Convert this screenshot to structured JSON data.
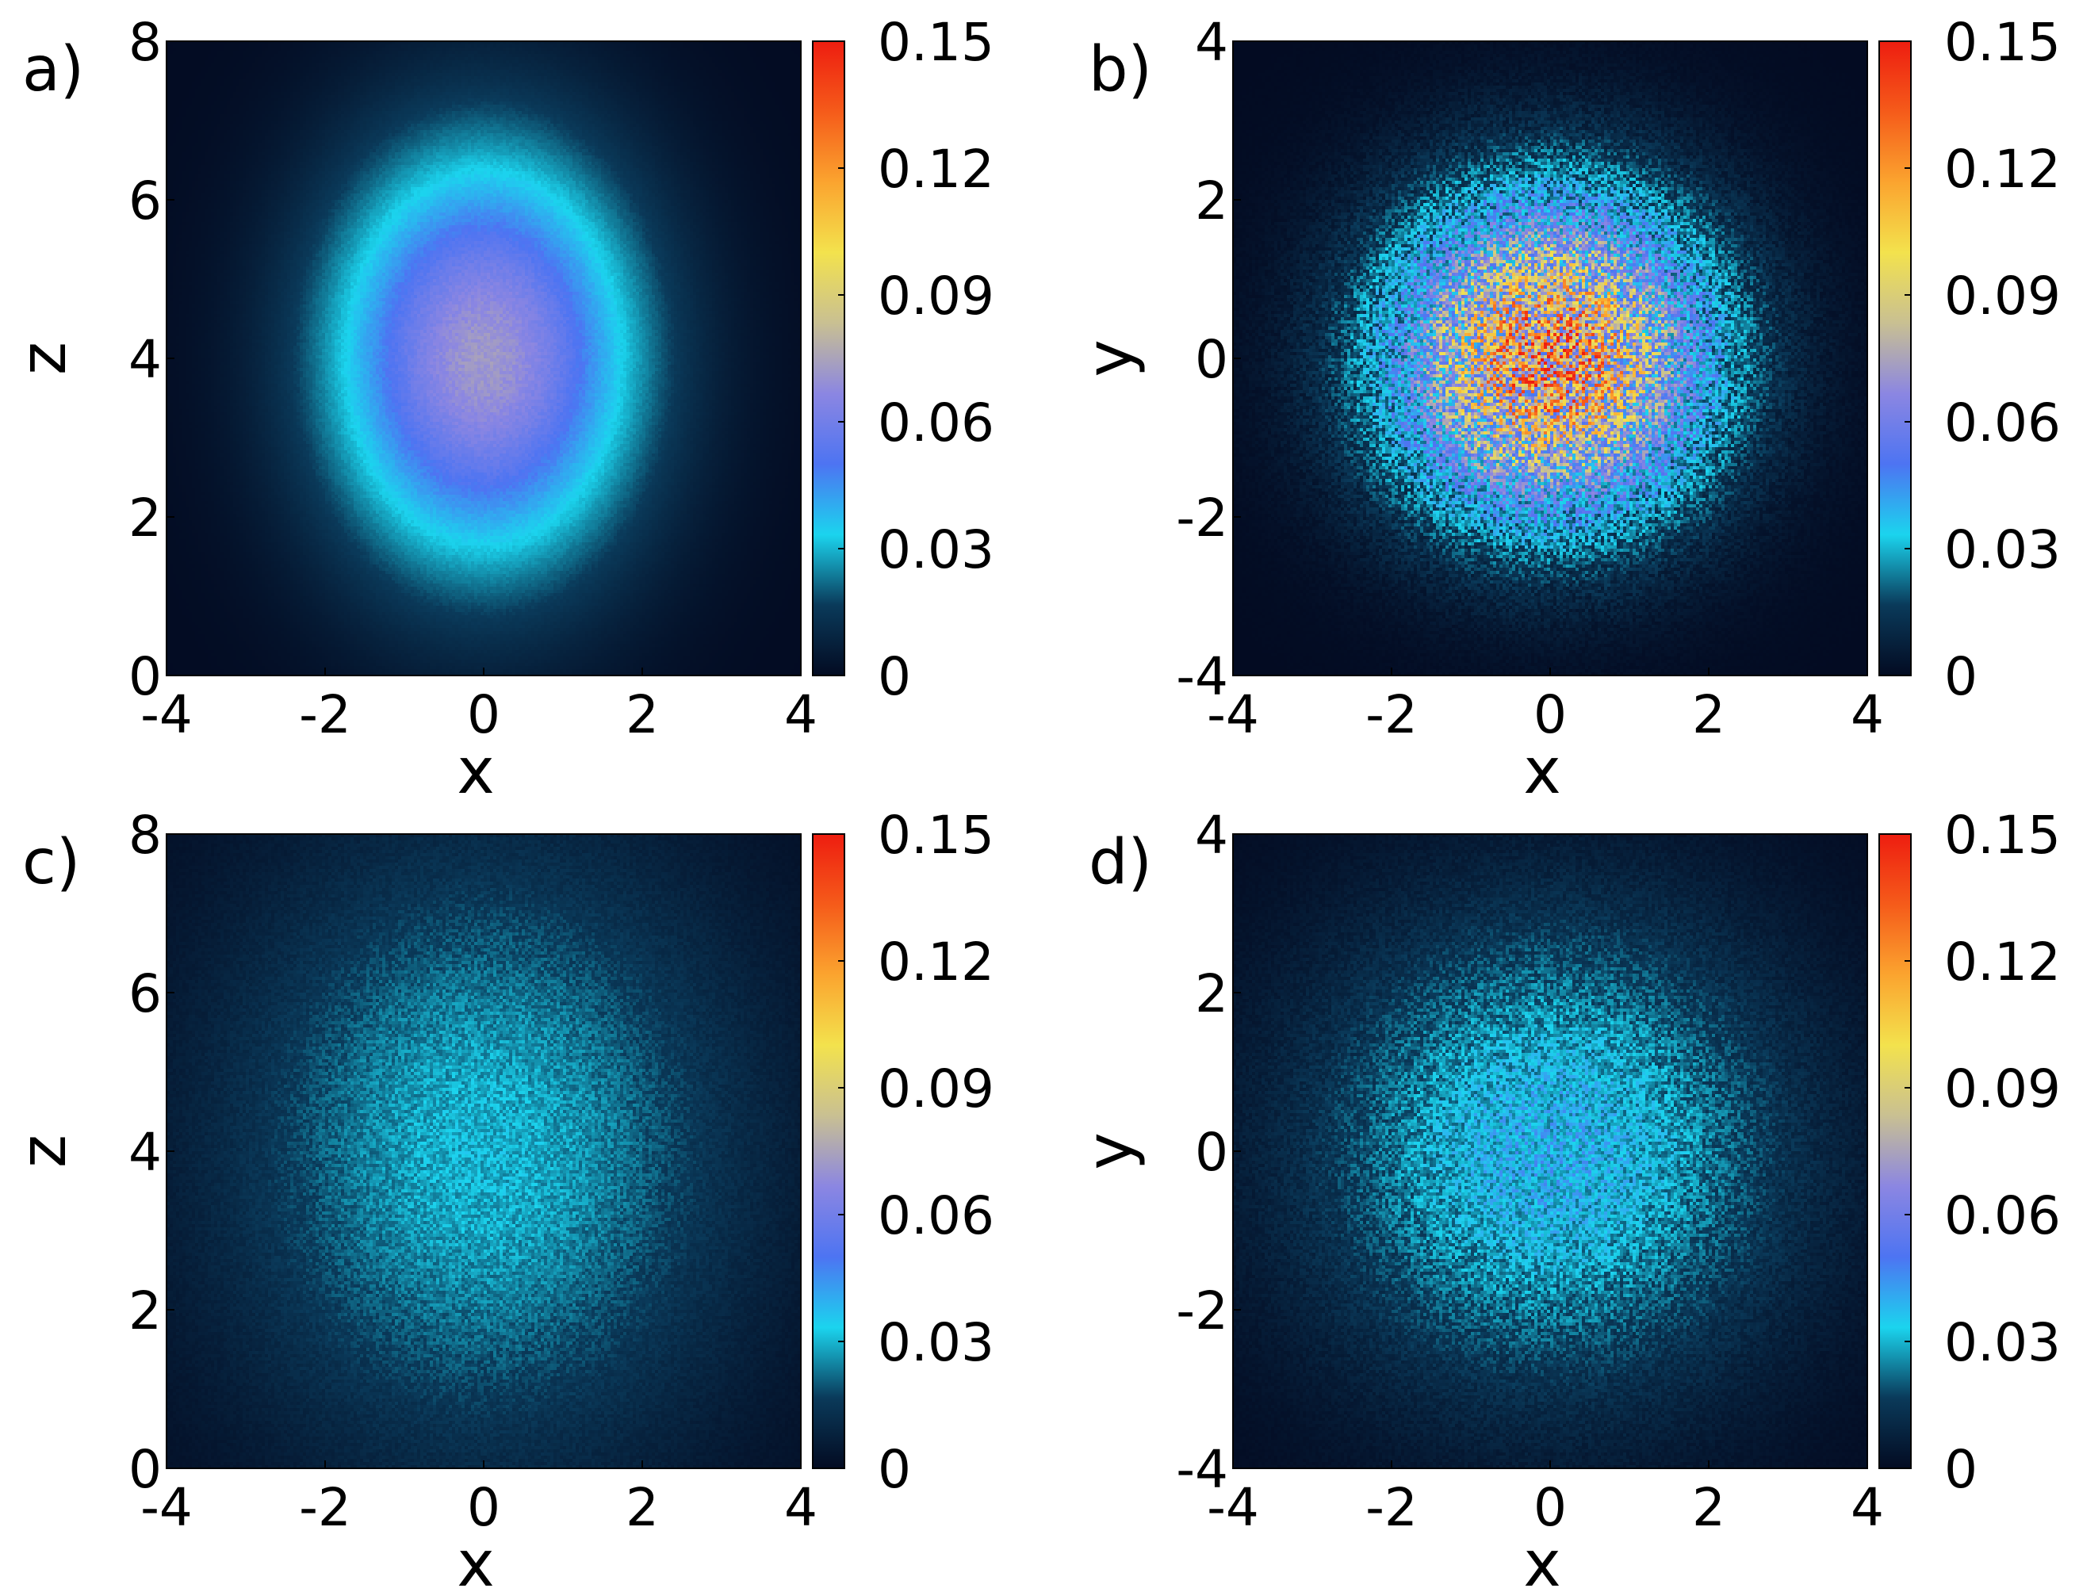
{
  "colormap": [
    "#030b22",
    "#0a3a5a",
    "#1bd4ee",
    "#4d74f2",
    "#8b86e2",
    "#c9c092",
    "#f3e24d",
    "#fba42f",
    "#f55b1a",
    "#ee1d10"
  ],
  "chart_data": [
    {
      "type": "heatmap",
      "panel_label": "a)",
      "xlabel": "x",
      "ylabel": "z",
      "xlim": [
        -4,
        4
      ],
      "ylim": [
        0,
        8
      ],
      "xticks": [
        "-4",
        "-2",
        "0",
        "2",
        "4"
      ],
      "yticks": [
        "0",
        "2",
        "4",
        "6",
        "8"
      ],
      "colorbar": {
        "range": [
          0,
          0.15
        ],
        "ticks": [
          "0",
          "0.03",
          "0.06",
          "0.09",
          "0.12",
          "0.15"
        ]
      },
      "distribution": {
        "center": [
          0,
          4
        ],
        "sigma": [
          1.4,
          1.9
        ],
        "peak": 0.072,
        "noise": 0.04
      }
    },
    {
      "type": "heatmap",
      "panel_label": "b)",
      "xlabel": "x",
      "ylabel": "y",
      "xlim": [
        -4,
        4
      ],
      "ylim": [
        -4,
        4
      ],
      "xticks": [
        "-4",
        "-2",
        "0",
        "2",
        "4"
      ],
      "yticks": [
        "-4",
        "-2",
        "0",
        "2",
        "4"
      ],
      "colorbar": {
        "range": [
          0,
          0.15
        ],
        "ticks": [
          "0",
          "0.03",
          "0.06",
          "0.09",
          "0.12",
          "0.15"
        ]
      },
      "distribution": {
        "center": [
          0,
          0
        ],
        "sigma": [
          1.4,
          1.4
        ],
        "peak": 0.105,
        "noise": 0.55
      }
    },
    {
      "type": "heatmap",
      "panel_label": "c)",
      "xlabel": "x",
      "ylabel": "z",
      "xlim": [
        -4,
        4
      ],
      "ylim": [
        0,
        8
      ],
      "xticks": [
        "-4",
        "-2",
        "0",
        "2",
        "4"
      ],
      "yticks": [
        "0",
        "2",
        "4",
        "6",
        "8"
      ],
      "colorbar": {
        "range": [
          0,
          0.15
        ],
        "ticks": [
          "0",
          "0.03",
          "0.06",
          "0.09",
          "0.12",
          "0.15"
        ]
      },
      "distribution": {
        "center": [
          0,
          4
        ],
        "sigma": [
          2.3,
          2.8
        ],
        "peak": 0.03,
        "noise": 0.2
      }
    },
    {
      "type": "heatmap",
      "panel_label": "d)",
      "xlabel": "x",
      "ylabel": "y",
      "xlim": [
        -4,
        4
      ],
      "ylim": [
        -4,
        4
      ],
      "xticks": [
        "-4",
        "-2",
        "0",
        "2",
        "4"
      ],
      "yticks": [
        "-4",
        "-2",
        "0",
        "2",
        "4"
      ],
      "colorbar": {
        "range": [
          0,
          0.15
        ],
        "ticks": [
          "0",
          "0.03",
          "0.06",
          "0.09",
          "0.12",
          "0.15"
        ]
      },
      "distribution": {
        "center": [
          0,
          0
        ],
        "sigma": [
          2.1,
          2.1
        ],
        "peak": 0.036,
        "noise": 0.35
      }
    }
  ]
}
